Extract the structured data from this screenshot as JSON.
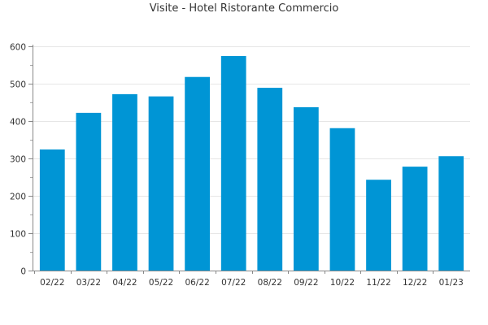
{
  "chart_data": {
    "type": "bar",
    "title": "Visite - Hotel Ristorante Commercio",
    "xlabel": "",
    "ylabel": "",
    "categories": [
      "02/22",
      "03/22",
      "04/22",
      "05/22",
      "06/22",
      "07/22",
      "08/22",
      "09/22",
      "10/22",
      "11/22",
      "12/22",
      "01/23"
    ],
    "values": [
      324,
      422,
      472,
      466,
      518,
      574,
      489,
      437,
      381,
      243,
      278,
      306
    ],
    "ylim": [
      0,
      600
    ],
    "yticks": [
      0,
      100,
      200,
      300,
      400,
      500,
      600
    ],
    "grid": true,
    "legend": "none",
    "bar_color": "#0095d5"
  }
}
